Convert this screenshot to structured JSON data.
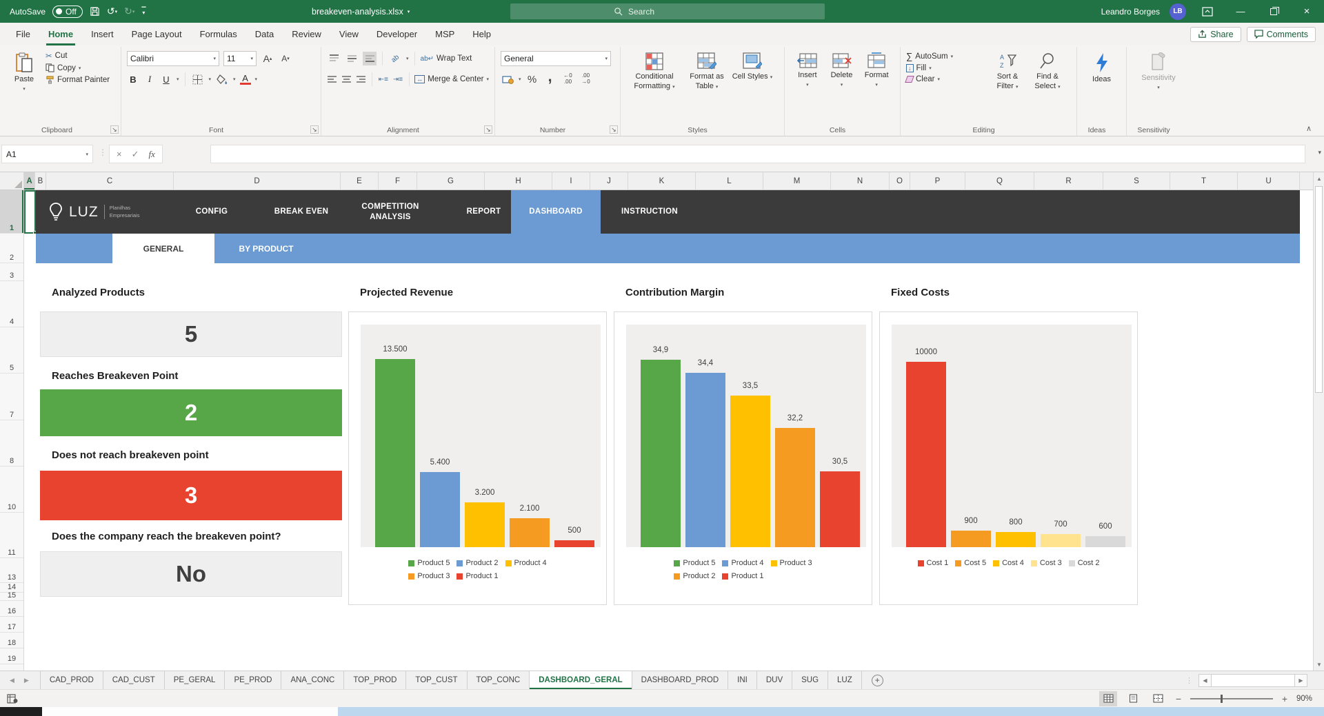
{
  "title_bar": {
    "autosave_label": "AutoSave",
    "autosave_state": "Off",
    "filename": "breakeven-analysis.xlsx",
    "search_placeholder": "Search",
    "user_name": "Leandro Borges",
    "user_initials": "LB"
  },
  "menu_bar": {
    "tabs": [
      "File",
      "Home",
      "Insert",
      "Page Layout",
      "Formulas",
      "Data",
      "Review",
      "View",
      "Developer",
      "MSP",
      "Help"
    ],
    "active_tab": "Home",
    "share_label": "Share",
    "comments_label": "Comments"
  },
  "ribbon": {
    "clipboard": {
      "group_label": "Clipboard",
      "paste": "Paste",
      "cut": "Cut",
      "copy": "Copy",
      "format_painter": "Format Painter"
    },
    "font": {
      "group_label": "Font",
      "font_name": "Calibri",
      "font_size": "11",
      "bold": "B",
      "italic": "I",
      "underline": "U"
    },
    "alignment": {
      "group_label": "Alignment",
      "wrap_text": "Wrap Text",
      "merge_center": "Merge & Center"
    },
    "number": {
      "group_label": "Number",
      "format": "General",
      "percent": "%",
      "comma": ","
    },
    "styles": {
      "group_label": "Styles",
      "conditional_formatting": "Conditional Formatting",
      "format_as_table": "Format as Table",
      "cell_styles": "Cell Styles"
    },
    "cells": {
      "group_label": "Cells",
      "insert": "Insert",
      "delete": "Delete",
      "format": "Format"
    },
    "editing": {
      "group_label": "Editing",
      "autosum": "AutoSum",
      "fill": "Fill",
      "clear": "Clear",
      "sort_filter": "Sort & Filter",
      "find_select": "Find & Select"
    },
    "ideas": {
      "group_label": "Ideas",
      "label": "Ideas"
    },
    "sensitivity": {
      "group_label": "Sensitivity",
      "label": "Sensitivity"
    }
  },
  "formula_bar": {
    "name_box": "A1",
    "fx_label": "fx"
  },
  "grid": {
    "columns": [
      "A",
      "B",
      "C",
      "D",
      "E",
      "F",
      "G",
      "H",
      "I",
      "J",
      "K",
      "L",
      "M",
      "N",
      "O",
      "P",
      "Q",
      "R",
      "S",
      "T",
      "U"
    ],
    "rows": [
      "1",
      "2",
      "3",
      "4",
      "5",
      "7",
      "8",
      "10",
      "11",
      "13",
      "14",
      "15",
      "16",
      "17",
      "18",
      "19"
    ],
    "selected_cell": "A1",
    "selected_column": "A",
    "selected_row": "1"
  },
  "dashboard": {
    "logo": {
      "brand": "LUZ",
      "tagline_line1": "Planilhas",
      "tagline_line2": "Empresariais"
    },
    "nav_items": [
      "CONFIG",
      "BREAK EVEN",
      "COMPETITION ANALYSIS",
      "REPORT",
      "DASHBOARD",
      "INSTRUCTION"
    ],
    "nav_active": "DASHBOARD",
    "sub_tabs": [
      "GENERAL",
      "BY PRODUCT"
    ],
    "sub_tab_active": "GENERAL",
    "cards": [
      {
        "label": "Analyzed Products",
        "value": "5",
        "style": "neutral"
      },
      {
        "label": "Reaches Breakeven Point",
        "value": "2",
        "style": "green"
      },
      {
        "label": "Does not reach breakeven point",
        "value": "3",
        "style": "red"
      },
      {
        "label": "Does the company reach the breakeven point?",
        "value": "No",
        "style": "neutral"
      }
    ]
  },
  "chart_data": [
    {
      "type": "bar",
      "title": "Projected Revenue",
      "categories": [
        "Product 5",
        "Product 2",
        "Product 4",
        "Product 3",
        "Product 1"
      ],
      "values": [
        13500,
        5400,
        3200,
        2100,
        500
      ],
      "value_labels": [
        "13.500",
        "5.400",
        "3.200",
        "2.100",
        "500"
      ],
      "colors": [
        "#57A647",
        "#6B9BD2",
        "#FFC000",
        "#F59B22",
        "#E8432E"
      ],
      "ylim": [
        0,
        16000
      ],
      "grid": false,
      "legend_position": "bottom",
      "legend_rows": [
        [
          "Product 5",
          "Product 2",
          "Product 4"
        ],
        [
          "Product 3",
          "Product 1"
        ]
      ]
    },
    {
      "type": "bar",
      "title": "Contribution Margin",
      "categories": [
        "Product 5",
        "Product 4",
        "Product 3",
        "Product 2",
        "Product 1"
      ],
      "values": [
        34.9,
        34.4,
        33.5,
        32.2,
        30.5
      ],
      "value_labels": [
        "34,9",
        "34,4",
        "33,5",
        "32,2",
        "30,5"
      ],
      "colors": [
        "#57A647",
        "#6B9BD2",
        "#FFC000",
        "#F59B22",
        "#E8432E"
      ],
      "ylim": [
        27.5,
        36.3
      ],
      "grid": false,
      "legend_position": "bottom",
      "legend_rows": [
        [
          "Product 5",
          "Product 4",
          "Product 3"
        ],
        [
          "Product 2",
          "Product 1"
        ]
      ]
    },
    {
      "type": "bar",
      "title": "Fixed Costs",
      "categories": [
        "Cost 1",
        "Cost 5",
        "Cost 4",
        "Cost 3",
        "Cost 2"
      ],
      "values": [
        10000,
        900,
        800,
        700,
        600
      ],
      "value_labels": [
        "10000",
        "900",
        "800",
        "700",
        "600"
      ],
      "colors": [
        "#E8432E",
        "#F59B22",
        "#FFC000",
        "#FFE38F",
        "#D9D9D9"
      ],
      "ylim": [
        0,
        12000
      ],
      "grid": false,
      "legend_position": "bottom",
      "legend_rows": [
        [
          "Cost 1",
          "Cost 5",
          "Cost 4",
          "Cost 3",
          "Cost 2"
        ]
      ]
    }
  ],
  "sheet_tabs": {
    "tabs": [
      "CAD_PROD",
      "CAD_CUST",
      "PE_GERAL",
      "PE_PROD",
      "ANA_CONC",
      "TOP_PROD",
      "TOP_CUST",
      "TOP_CONC",
      "DASHBOARD_GERAL",
      "DASHBOARD_PROD",
      "INI",
      "DUV",
      "SUG",
      "LUZ"
    ],
    "active_tab": "DASHBOARD_GERAL",
    "add_sheet": "+"
  },
  "status_bar": {
    "zoom_level": "90%"
  },
  "colors": {
    "excel_green": "#217346",
    "nav_dark": "#3b3b3b",
    "banner_blue": "#6b9bd2",
    "card_green": "#57a647",
    "card_red": "#e8432e"
  }
}
